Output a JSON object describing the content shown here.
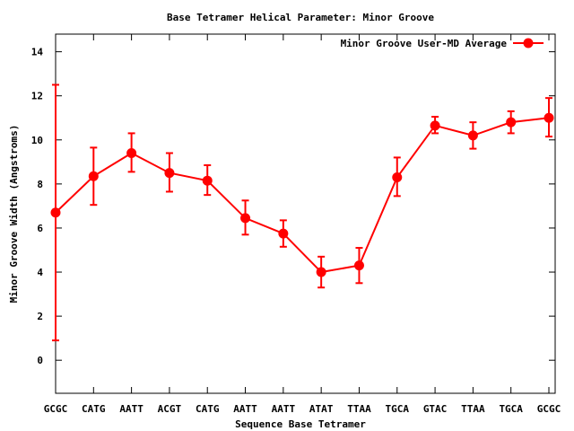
{
  "chart_data": {
    "type": "line",
    "title": "Base Tetramer Helical Parameter: Minor Groove",
    "xlabel": "Sequence Base Tetramer",
    "ylabel": "Minor Groove Width (Angstroms)",
    "categories": [
      "GCGC",
      "CATG",
      "AATT",
      "ACGT",
      "CATG",
      "AATT",
      "AATT",
      "ATAT",
      "TTAA",
      "TGCA",
      "GTAC",
      "TTAA",
      "TGCA",
      "GCGC"
    ],
    "ylim": [
      -1.5,
      14.8
    ],
    "yticks": [
      0,
      2,
      4,
      6,
      8,
      10,
      12,
      14
    ],
    "grid": false,
    "legend_position": "top-right",
    "series": [
      {
        "name": "Minor Groove User-MD Average",
        "color": "#ff0000",
        "values": [
          6.7,
          8.35,
          9.4,
          8.5,
          8.15,
          6.45,
          5.75,
          4.0,
          4.3,
          8.3,
          10.65,
          10.2,
          10.8,
          11.0
        ],
        "err_low": [
          0.9,
          7.05,
          8.55,
          7.65,
          7.5,
          5.7,
          5.15,
          3.3,
          3.5,
          7.45,
          10.3,
          9.6,
          10.3,
          10.15
        ],
        "err_high": [
          12.5,
          9.65,
          10.3,
          9.4,
          8.85,
          7.25,
          6.35,
          4.7,
          5.1,
          9.2,
          11.05,
          10.8,
          11.3,
          11.9
        ]
      }
    ]
  }
}
